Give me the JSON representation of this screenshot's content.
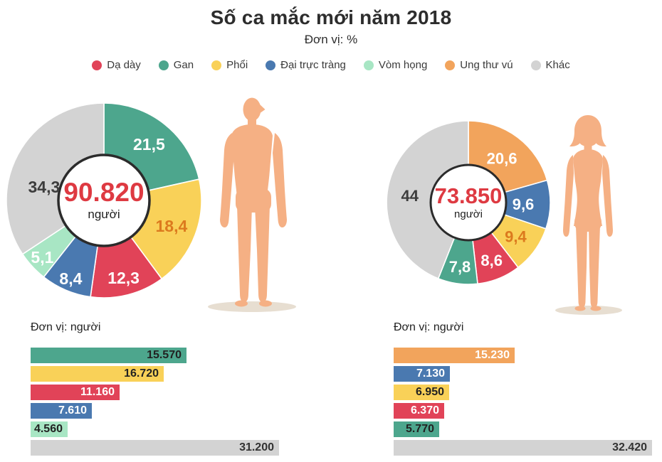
{
  "title": "Số ca mắc mới năm 2018",
  "subtitle": "Đơn vị: %",
  "colors": {
    "Dạ dày": "#E14358",
    "Gan": "#4DA68D",
    "Phổi": "#F9D158",
    "Đại trực tràng": "#4A79B0",
    "Vòm họng": "#A8E6C4",
    "Ung thư vú": "#F2A45C",
    "Khác": "#D3D3D3",
    "accent_red": "#DE3A42",
    "dark_text": "#2d2d2d",
    "label_on_yellow": "#DC7A1E",
    "label_on_gray": "#3d3d3d",
    "skin": "#F5B084",
    "shadow": "#E7DED1"
  },
  "legend": [
    {
      "label": "Dạ dày"
    },
    {
      "label": "Gan"
    },
    {
      "label": "Phổi"
    },
    {
      "label": "Đại trực tràng"
    },
    {
      "label": "Vòm họng"
    },
    {
      "label": "Ung thư vú"
    },
    {
      "label": "Khác"
    }
  ],
  "male": {
    "center_value": "90.820",
    "center_unit": "người",
    "bars_header": "Đơn vị: người",
    "pie": [
      {
        "label": "Gan",
        "value": 21.5,
        "display": "21,5",
        "label_color": "#FFFFFF",
        "label_r": 0.74
      },
      {
        "label": "Phổi",
        "value": 18.4,
        "display": "18,4",
        "label_color": "#DC7A1E",
        "label_r": 0.74
      },
      {
        "label": "Dạ dày",
        "value": 12.3,
        "display": "12,3",
        "label_color": "#FFFFFF",
        "label_r": 0.82
      },
      {
        "label": "Đại trực tràng",
        "value": 8.4,
        "display": "8,4",
        "label_color": "#FFFFFF",
        "label_r": 0.87
      },
      {
        "label": "Vòm họng",
        "value": 5.1,
        "display": "5,1",
        "label_color": "#FFFFFF",
        "label_r": 0.86
      },
      {
        "label": "Khác",
        "value": 34.3,
        "display": "34,3",
        "label_color": "#3d3d3d",
        "label_r": 0.63,
        "label_angle": 283
      }
    ],
    "bars": [
      {
        "label": "Gan",
        "value": 15570,
        "display": "15.570",
        "text_color": "#222222"
      },
      {
        "label": "Phổi",
        "value": 16720,
        "display": "16.720",
        "text_color": "#222222"
      },
      {
        "label": "Dạ dày",
        "value": 11160,
        "display": "11.160",
        "text_color": "#FFFFFF"
      },
      {
        "label": "Đại trực tràng",
        "value": 7610,
        "display": "7.610",
        "text_color": "#FFFFFF"
      },
      {
        "label": "Vòm họng",
        "value": 4560,
        "display": "4.560",
        "text_color": "#222222"
      },
      {
        "label": "Khác",
        "value": 31200,
        "display": "31.200",
        "text_color": "#333333"
      }
    ]
  },
  "female": {
    "center_value": "73.850",
    "center_unit": "người",
    "bars_header": "Đơn vị: người",
    "pie": [
      {
        "label": "Ung thư vú",
        "value": 20.6,
        "display": "20,6",
        "label_color": "#FFFFFF",
        "label_r": 0.68
      },
      {
        "label": "Đại trực tràng",
        "value": 9.6,
        "display": "9,6",
        "label_color": "#FFFFFF",
        "label_r": 0.67
      },
      {
        "label": "Phổi",
        "value": 9.4,
        "display": "9,4",
        "label_color": "#DC7A1E",
        "label_r": 0.71
      },
      {
        "label": "Dạ dày",
        "value": 8.6,
        "display": "8,6",
        "label_color": "#FFFFFF",
        "label_r": 0.76
      },
      {
        "label": "Gan",
        "value": 7.8,
        "display": "7,8",
        "label_color": "#FFFFFF",
        "label_r": 0.79
      },
      {
        "label": "Khác",
        "value": 44.0,
        "display": "44",
        "label_color": "#3d3d3d",
        "label_r": 0.72,
        "label_angle": 277
      }
    ],
    "bars": [
      {
        "label": "Ung thư vú",
        "value": 15230,
        "display": "15.230",
        "text_color": "#FFFFFF"
      },
      {
        "label": "Đại trực tràng",
        "value": 7130,
        "display": "7.130",
        "text_color": "#FFFFFF"
      },
      {
        "label": "Phổi",
        "value": 6950,
        "display": "6.950",
        "text_color": "#222222"
      },
      {
        "label": "Dạ dày",
        "value": 6370,
        "display": "6.370",
        "text_color": "#FFFFFF"
      },
      {
        "label": "Gan",
        "value": 5770,
        "display": "5.770",
        "text_color": "#222222"
      },
      {
        "label": "Khác",
        "value": 32420,
        "display": "32.420",
        "text_color": "#333333"
      }
    ]
  },
  "chart_data": [
    {
      "type": "pie",
      "group": "male",
      "unit": "%",
      "center_total": "90.820 người",
      "categories": [
        "Gan",
        "Phổi",
        "Dạ dày",
        "Đại trực tràng",
        "Vòm họng",
        "Khác"
      ],
      "values": [
        21.5,
        18.4,
        12.3,
        8.4,
        5.1,
        34.3
      ],
      "start_angle": "top",
      "direction": "clockwise",
      "legend_position": "top"
    },
    {
      "type": "pie",
      "group": "female",
      "unit": "%",
      "center_total": "73.850 người",
      "categories": [
        "Ung thư vú",
        "Đại trực tràng",
        "Phổi",
        "Dạ dày",
        "Gan",
        "Khác"
      ],
      "values": [
        20.6,
        9.6,
        9.4,
        8.6,
        7.8,
        44.0
      ],
      "start_angle": "top",
      "direction": "clockwise",
      "legend_position": "top"
    },
    {
      "type": "bar",
      "group": "male",
      "unit": "người",
      "orientation": "horizontal",
      "categories": [
        "Gan",
        "Phổi",
        "Dạ dày",
        "Đại trực tràng",
        "Vòm họng",
        "Khác"
      ],
      "values": [
        15570,
        16720,
        11160,
        7610,
        4560,
        31200
      ]
    },
    {
      "type": "bar",
      "group": "female",
      "unit": "người",
      "orientation": "horizontal",
      "categories": [
        "Ung thư vú",
        "Đại trực tràng",
        "Phổi",
        "Dạ dày",
        "Gan",
        "Khác"
      ],
      "values": [
        15230,
        7130,
        6950,
        6370,
        5770,
        32420
      ]
    }
  ]
}
